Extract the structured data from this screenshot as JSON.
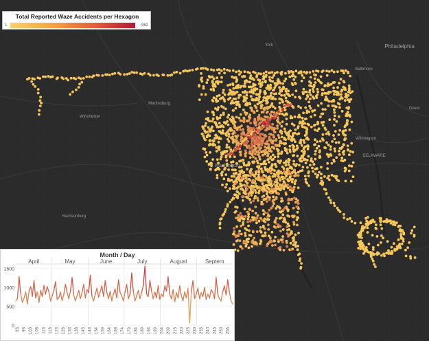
{
  "legend": {
    "title": "Total Reported Waze Accidents per Hexagon",
    "min": "1",
    "max": "962"
  },
  "map": {
    "places": [
      {
        "id": "philadelphia",
        "name": "Philadelphia"
      },
      {
        "id": "york",
        "name": "York"
      },
      {
        "id": "baltimore",
        "name": "Baltimore"
      },
      {
        "id": "martinsburg",
        "name": "Martinsburg"
      },
      {
        "id": "winchester",
        "name": "Winchester"
      },
      {
        "id": "washington",
        "name": "Washington"
      },
      {
        "id": "dover",
        "name": "Dover"
      },
      {
        "id": "delaware",
        "name": "DELAWARE"
      },
      {
        "id": "harrisonburg",
        "name": "Harrisonburg"
      },
      {
        "id": "wilmington",
        "name": "Wilmington"
      }
    ],
    "colors": {
      "background": "#2b2b2b",
      "hex_low": "#f7c65a",
      "hex_high": "#b01b3a"
    }
  },
  "chart_data": {
    "type": "line",
    "title": "Month / Day",
    "months": [
      "April",
      "May",
      "June",
      "July",
      "August",
      "Septem"
    ],
    "yticks": [
      "1500",
      "1000",
      "500",
      "0"
    ],
    "ylim": [
      0,
      1600
    ],
    "xticks": [
      "93",
      "98",
      "103",
      "108",
      "113",
      "118",
      "123",
      "128",
      "133",
      "138",
      "143",
      "148",
      "154",
      "159",
      "164",
      "169",
      "174",
      "179",
      "184",
      "189",
      "194",
      "199",
      "204",
      "209",
      "215",
      "220",
      "225",
      "230",
      "235",
      "240",
      "245",
      "250",
      "256"
    ],
    "values": [
      640,
      700,
      1280,
      820,
      600,
      720,
      880,
      560,
      900,
      1020,
      760,
      1180,
      720,
      880,
      600,
      920,
      760,
      1050,
      820,
      1020,
      880,
      640,
      780,
      920,
      1150,
      680,
      720,
      880,
      650,
      820,
      1080,
      860,
      700,
      900,
      1260,
      800,
      640,
      780,
      920,
      700,
      860,
      1080,
      720,
      940,
      860,
      1320,
      760,
      640,
      820,
      980,
      740,
      880,
      1040,
      760,
      1180,
      860,
      700,
      900,
      640,
      820,
      960,
      720,
      1200,
      860,
      780,
      640,
      880,
      1080,
      700,
      820,
      1380,
      880,
      640,
      780,
      920,
      700,
      860,
      1040,
      1560,
      820,
      760,
      1180,
      900,
      700,
      880,
      720,
      1040,
      680,
      820,
      760,
      1040,
      900,
      1280,
      820,
      700,
      940,
      620,
      860,
      720,
      1040,
      780,
      640,
      880,
      720,
      980,
      60,
      880,
      1180,
      700,
      820,
      980,
      700,
      860,
      760,
      1000,
      680,
      820,
      720,
      940,
      860,
      700,
      1260,
      820,
      700,
      640,
      880,
      1040,
      800,
      1200,
      880,
      640,
      560
    ]
  }
}
